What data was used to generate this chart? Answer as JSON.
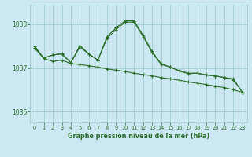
{
  "title": "Graphe pression niveau de la mer (hPa)",
  "background_color": "#cce8f0",
  "grid_color": "#99cccc",
  "line_color": "#2d6e2d",
  "ylim": [
    1035.75,
    1038.45
  ],
  "yticks": [
    1036,
    1037,
    1038
  ],
  "xlim": [
    -0.5,
    23.5
  ],
  "xticks": [
    0,
    1,
    2,
    3,
    4,
    5,
    6,
    7,
    8,
    9,
    10,
    11,
    12,
    13,
    14,
    15,
    16,
    17,
    18,
    19,
    20,
    21,
    22,
    23
  ],
  "series1_x": [
    0,
    1,
    2,
    3,
    4,
    5,
    6,
    7,
    8,
    9,
    10,
    11,
    12,
    13,
    14,
    15,
    16,
    17,
    18,
    19,
    20,
    21,
    22,
    23
  ],
  "series1_y": [
    1037.45,
    1037.22,
    1037.15,
    1037.18,
    1037.1,
    1037.08,
    1037.05,
    1037.02,
    1036.98,
    1036.95,
    1036.92,
    1036.88,
    1036.85,
    1036.82,
    1036.78,
    1036.75,
    1036.72,
    1036.68,
    1036.65,
    1036.62,
    1036.58,
    1036.55,
    1036.5,
    1036.44
  ],
  "series2_x": [
    0,
    1,
    2,
    3,
    4,
    5,
    6,
    7,
    8,
    9,
    10,
    11,
    12,
    13,
    14,
    15,
    16,
    17,
    18,
    19,
    20,
    21,
    22,
    23
  ],
  "series2_y": [
    1037.46,
    1037.23,
    1037.3,
    1037.32,
    1037.12,
    1037.48,
    1037.32,
    1037.18,
    1037.68,
    1037.88,
    1038.05,
    1038.05,
    1037.72,
    1037.35,
    1037.08,
    1037.02,
    1036.93,
    1036.87,
    1036.88,
    1036.84,
    1036.82,
    1036.78,
    1036.73,
    1036.44
  ],
  "series3_x": [
    0,
    1,
    2,
    3,
    4,
    5,
    6,
    7,
    8,
    9,
    10,
    11,
    12,
    13,
    14,
    15,
    16,
    17,
    18,
    19,
    20,
    21,
    22,
    23
  ],
  "series3_y": [
    1037.5,
    1037.22,
    1037.3,
    1037.33,
    1037.12,
    1037.52,
    1037.32,
    1037.18,
    1037.72,
    1037.92,
    1038.08,
    1038.08,
    1037.75,
    1037.38,
    1037.1,
    1037.02,
    1036.94,
    1036.88,
    1036.88,
    1036.84,
    1036.82,
    1036.78,
    1036.75,
    1036.44
  ]
}
